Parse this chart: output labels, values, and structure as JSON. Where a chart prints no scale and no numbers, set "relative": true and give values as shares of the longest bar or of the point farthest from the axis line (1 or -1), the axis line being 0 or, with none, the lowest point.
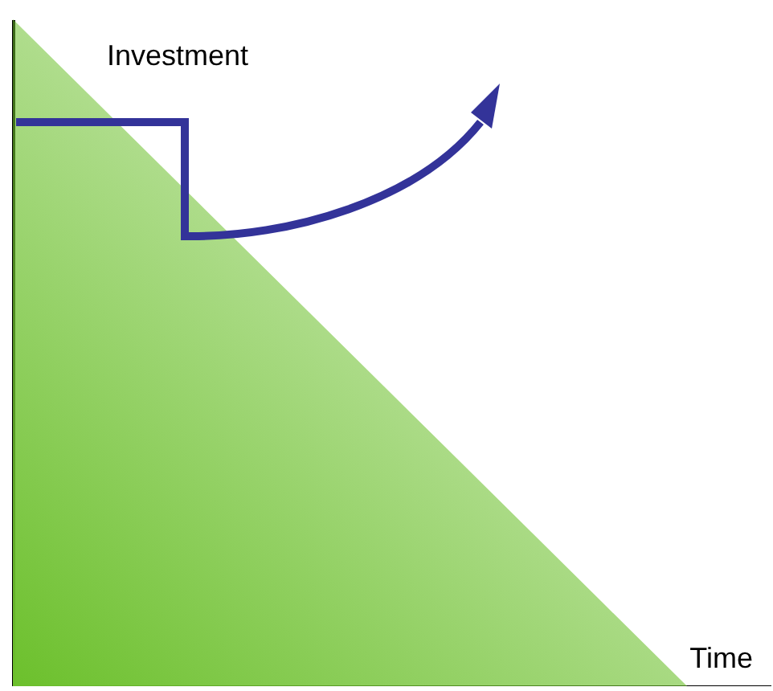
{
  "chart_data": {
    "type": "area",
    "relative": true,
    "xlabel": "Time",
    "ylabel": "Investment",
    "grid": false,
    "categories": [
      null,
      null,
      null,
      null,
      null,
      null,
      null,
      null,
      null,
      null
    ],
    "series": [
      {
        "color": "#6cc02c",
        "values": [
          1,
          0.875,
          0.75,
          0.625,
          0.5,
          0.375,
          0.25,
          0.125,
          0,
          0
        ]
      }
    ]
  }
}
